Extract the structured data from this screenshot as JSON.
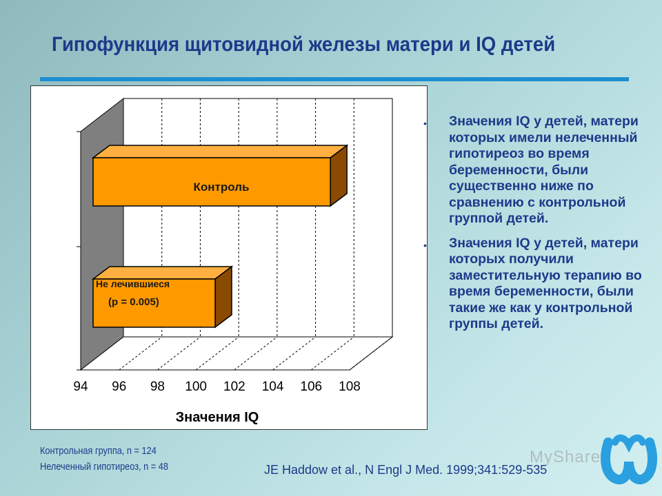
{
  "slide": {
    "title": "Гипофункция щитовидной железы матери и IQ детей"
  },
  "chart_data": {
    "type": "bar",
    "orientation": "horizontal",
    "style": "3d",
    "categories": [
      "Не лечившиеся",
      "Контроль"
    ],
    "series": [
      {
        "values": [
          101,
          107
        ]
      }
    ],
    "bar_labels": {
      "untreated": "Не лечившиеся",
      "untreated_p": "(p = 0.005)",
      "control": "Контроль"
    },
    "xlabel": "Значения IQ",
    "xlim": [
      94,
      108
    ],
    "xticks": [
      "94",
      "96",
      "98",
      "100",
      "102",
      "104",
      "106",
      "108"
    ],
    "grid": "vertical dashed",
    "colors": {
      "bar_front": "#ff9900",
      "bar_top": "#ffb040",
      "bar_side": "#8a4a00",
      "wall": "#7f7f7f"
    }
  },
  "bullets": [
    "Значения IQ у детей, матери которых имели нелеченный гипотиреоз во время беременности, были существенно ниже по сравнению с контрольной группой детей.",
    "Значения IQ у детей, матери которых получили заместительную терапию во время беременности, были такие же как у контрольной группы детей."
  ],
  "footnotes": {
    "control_group": "Контрольная группа, n = 124",
    "untreated_group": "Нелеченный гипотиреоз, n = 48"
  },
  "citation": "JE Haddow et al., N Engl J Med. 1999;341:529-535",
  "watermark": "MyShared",
  "colors": {
    "title": "#1c3a8a",
    "rule": "#1d8fd0",
    "logo": "#2aa0e0"
  }
}
